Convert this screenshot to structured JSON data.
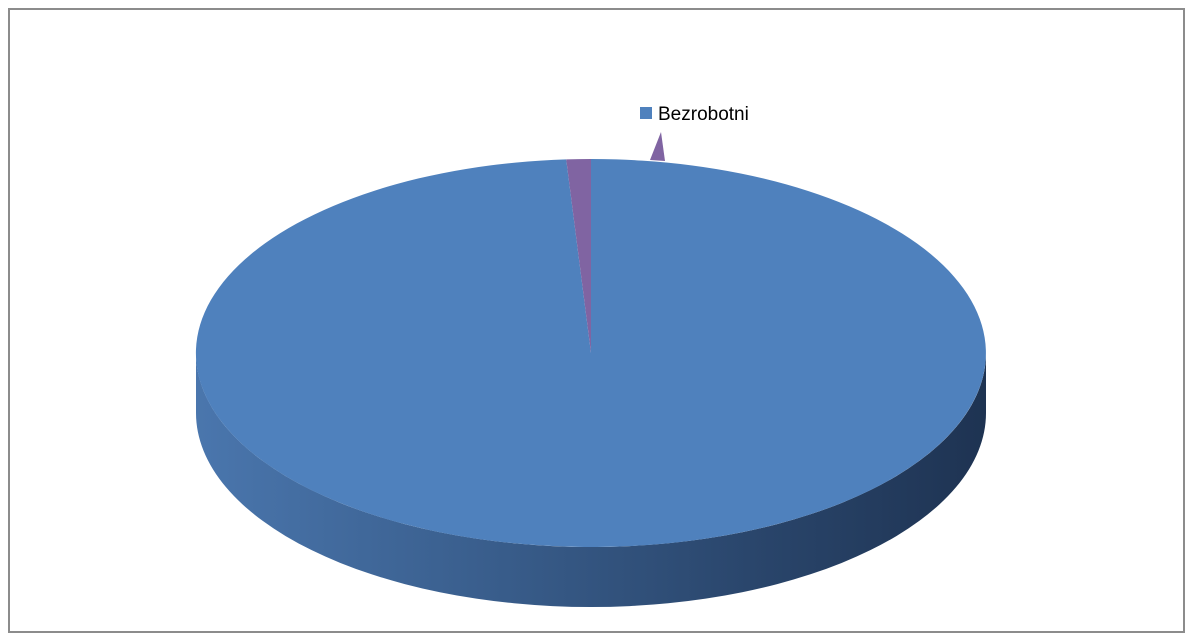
{
  "chart_data": {
    "type": "pie",
    "style": "3d",
    "title": "",
    "legend": {
      "placement": "top",
      "entries": [
        {
          "label": "Bezrobotni",
          "color": "#4f81bd"
        }
      ]
    },
    "series": [
      {
        "values": [
          99.0,
          1.0
        ],
        "colors": [
          "#4f81bd",
          "#8064a2"
        ]
      }
    ]
  }
}
